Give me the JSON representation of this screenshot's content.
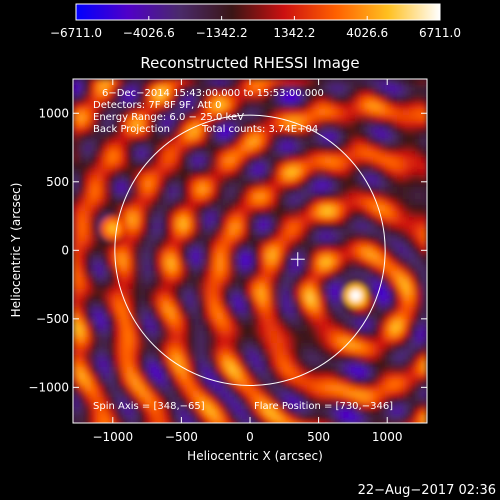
{
  "chart_data": {
    "type": "heatmap",
    "title": "Reconstructed RHESSI Image",
    "xlabel": "Heliocentric X (arcsec)",
    "ylabel": "Heliocentric Y (arcsec)",
    "xlim": [
      -1290,
      1290
    ],
    "ylim": [
      -1260,
      1250
    ],
    "x_ticks": [
      -1000,
      -500,
      0,
      500,
      1000
    ],
    "x_tick_labels": [
      "−1000",
      "−500",
      "0",
      "500",
      "1000"
    ],
    "y_ticks": [
      1000,
      500,
      0,
      -500,
      -1000
    ],
    "y_tick_labels": [
      "1000",
      "500",
      "0",
      "−500",
      "−1000"
    ],
    "colorbar": {
      "range": [
        -6711.0,
        6711.0
      ],
      "ticks": [
        -6711.0,
        -4026.6,
        -1342.2,
        1342.2,
        4026.6,
        6711.0
      ],
      "tick_labels": [
        "−6711.0",
        "−4026.6",
        "−1342.2",
        "1342.2",
        "4026.6",
        "6711.0"
      ],
      "colors": [
        "#0000ff",
        "#5000c8",
        "#4a2a6a",
        "#3a1515",
        "#cc1010",
        "#ff6000",
        "#ffc020",
        "#ffffff"
      ]
    },
    "annotations": {
      "date_range": "6−Dec−2014 15:43:00.000 to 15:53:00.000",
      "detectors": "Detectors: 7F 8F 9F, Att 0",
      "energy_range": "Energy Range: 6.0 − 25.0 keV",
      "method": "Back Projection",
      "total_counts": "Total counts: 3.74E+04",
      "spin_axis": "Spin Axis = [348,−65]",
      "flare_position": "Flare Position = [730,−346]"
    },
    "solar_limb_center": [
      0,
      0
    ],
    "solar_limb_radius": 985,
    "cross_marker": [
      348,
      -65
    ],
    "sources": [
      {
        "x": 770,
        "y": -330,
        "value": 6711.0
      },
      {
        "x": -1000,
        "y": 160,
        "value": 4500
      }
    ]
  },
  "footer": {
    "timestamp": "22−Aug−2017 02:36"
  }
}
